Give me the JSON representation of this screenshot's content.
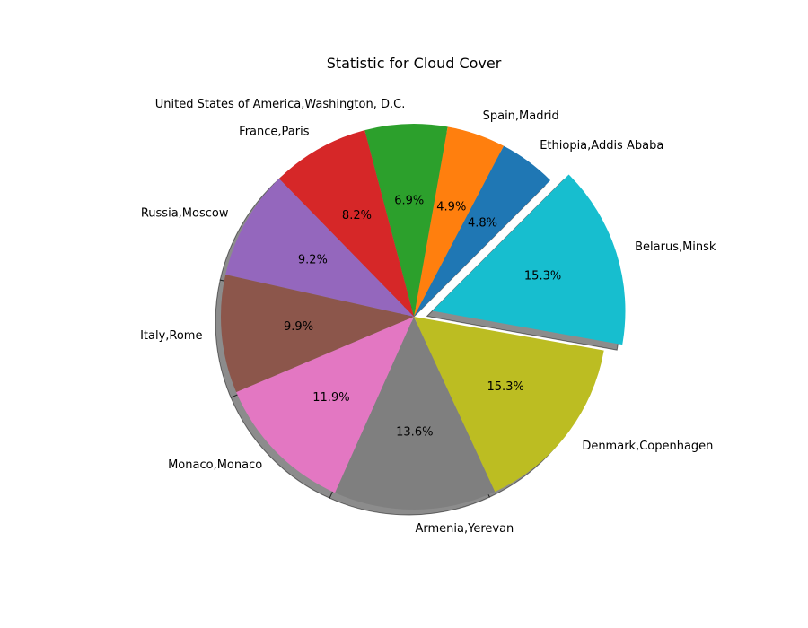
{
  "chart_data": {
    "type": "pie",
    "title": "Statistic for Cloud Cover",
    "slices": [
      {
        "label": "Ethiopia,Addis Ababa",
        "value": 4.8,
        "pct_label": "4.8%",
        "color": "#1f77b4",
        "explode": false
      },
      {
        "label": "Spain,Madrid",
        "value": 4.9,
        "pct_label": "4.9%",
        "color": "#ff7f0e",
        "explode": false
      },
      {
        "label": "United States of America,Washington, D.C.",
        "value": 6.9,
        "pct_label": "6.9%",
        "color": "#2ca02c",
        "explode": false
      },
      {
        "label": "France,Paris",
        "value": 8.2,
        "pct_label": "8.2%",
        "color": "#d62728",
        "explode": false
      },
      {
        "label": "Russia,Moscow",
        "value": 9.2,
        "pct_label": "9.2%",
        "color": "#9467bd",
        "explode": false
      },
      {
        "label": "Italy,Rome",
        "value": 9.9,
        "pct_label": "9.9%",
        "color": "#8c564b",
        "explode": false
      },
      {
        "label": "Monaco,Monaco",
        "value": 11.9,
        "pct_label": "11.9%",
        "color": "#e377c2",
        "explode": false
      },
      {
        "label": "Armenia,Yerevan",
        "value": 13.6,
        "pct_label": "13.6%",
        "color": "#7f7f7f",
        "explode": false
      },
      {
        "label": "Denmark,Copenhagen",
        "value": 15.3,
        "pct_label": "15.3%",
        "color": "#bcbd22",
        "explode": false
      },
      {
        "label": "Belarus,Minsk",
        "value": 15.3,
        "pct_label": "15.3%",
        "color": "#17becf",
        "explode": true
      }
    ],
    "shadow": true,
    "legend": "none"
  }
}
